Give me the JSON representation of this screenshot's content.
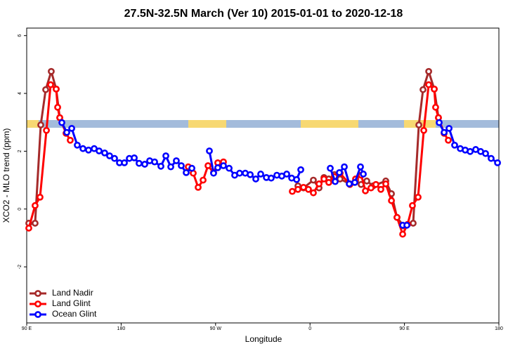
{
  "chart_data": {
    "type": "line",
    "title": "27.5N-32.5N March (Ver 10)   2015-01-01 to 2020-12-18",
    "x_label": "Longitude",
    "y_label": "XCO2 - MLO trend (ppm)",
    "xlim": [
      90,
      540
    ],
    "ylim": [
      -3.94,
      6.26
    ],
    "xticks": [
      {
        "value": 90,
        "label": "90 E"
      },
      {
        "value": 180,
        "label": "180"
      },
      {
        "value": 270,
        "label": "90 W"
      },
      {
        "value": 360,
        "label": "0"
      },
      {
        "value": 450,
        "label": "90 E"
      },
      {
        "value": 540,
        "label": "180"
      }
    ],
    "yticks": [
      -2,
      0,
      2,
      4,
      6
    ],
    "legend": "bottomleft",
    "series": [
      {
        "name": "Land Nadir",
        "color": "#a52a2a",
        "x": [
          92,
          98,
          103.4,
          108.1,
          113.4,
          118.1,
          121.5,
          null,
          348.5,
          353.8,
          363.2,
          368.6,
          373.3,
          377.9,
          383.3,
          388.6,
          398.0,
          403.4,
          408.7,
          414.1,
          420.1,
          432.2,
          437.6,
          442.9,
          449,
          458.3,
          463.7,
          467.7,
          473.1,
          478.4,
          482.4
        ],
        "values": [
          -0.49,
          -0.49,
          2.91,
          4.13,
          4.76,
          4.15,
          3.16,
          null,
          0.8,
          0.73,
          1.0,
          0.73,
          1.09,
          1.04,
          1.19,
          1.04,
          0.87,
          0.97,
          0.85,
          0.97,
          0.8,
          0.97,
          0.53,
          -0.29,
          -0.58,
          -0.49,
          2.91,
          4.13,
          4.76,
          4.15,
          3.16
        ]
      },
      {
        "name": "Land Glint",
        "color": "#ff0000",
        "x": [
          92,
          98,
          102.7,
          108.8,
          112.8,
          118.1,
          119.5,
          121.5,
          127.5,
          131.5,
          null,
          244,
          248.7,
          253.4,
          258.1,
          262.8,
          268.1,
          272.1,
          277.5,
          null,
          343.1,
          348.5,
          353.8,
          358.5,
          363.2,
          368.6,
          373.3,
          377.9,
          383.3,
          388.7,
          398,
          403.4,
          408.8,
          412.8,
          418.1,
          422.8,
          427.5,
          432.2,
          437.6,
          442.9,
          448.3,
          453,
          457.6,
          463,
          468.4,
          473.1,
          478.4,
          479.7,
          482.4,
          487.8,
          491.8
        ],
        "values": [
          -0.66,
          0.12,
          0.41,
          2.72,
          4.3,
          4.15,
          3.52,
          3.16,
          2.62,
          2.38,
          null,
          1.46,
          1.24,
          0.75,
          1.0,
          1.5,
          1.26,
          1.6,
          1.63,
          null,
          0.61,
          0.68,
          0.75,
          0.68,
          0.56,
          0.87,
          1.04,
          0.92,
          1.12,
          1.24,
          0.85,
          1.04,
          1.17,
          0.63,
          0.73,
          0.85,
          0.68,
          0.87,
          0.29,
          -0.29,
          -0.87,
          -0.53,
          0.12,
          0.41,
          2.72,
          4.3,
          4.15,
          3.52,
          3.16,
          2.62,
          2.38
        ]
      },
      {
        "name": "Ocean Glint",
        "color": "#0000ff",
        "x": [
          123.5,
          128.2,
          132.9,
          138.2,
          143.6,
          148.9,
          154.3,
          159,
          164.3,
          169,
          173.7,
          178.4,
          183.1,
          187.8,
          192.5,
          197.1,
          202.5,
          207.2,
          211.9,
          217.9,
          222.6,
          227.3,
          232.6,
          237.3,
          242,
          247.4,
          null,
          264.1,
          268.1,
          272.1,
          277.5,
          282.9,
          288.2,
          292.9,
          298.3,
          303,
          308.3,
          313,
          318.4,
          323,
          328.4,
          333.1,
          337.8,
          342.5,
          347.2,
          351.2,
          null,
          379.3,
          384,
          388,
          392.7,
          397.4,
          402.7,
          408.1,
          410.8,
          null,
          448.3,
          452.3,
          null,
          483.1,
          487.8,
          492.5,
          497.8,
          503.2,
          507.9,
          512.6,
          517.9,
          522.6,
          527.3,
          532.6,
          538.7
        ],
        "values": [
          2.99,
          2.65,
          2.79,
          2.21,
          2.09,
          2.04,
          2.09,
          2.01,
          1.94,
          1.84,
          1.75,
          1.6,
          1.6,
          1.75,
          1.77,
          1.58,
          1.55,
          1.67,
          1.63,
          1.48,
          1.84,
          1.46,
          1.67,
          1.5,
          1.26,
          1.41,
          null,
          2.01,
          1.24,
          1.43,
          1.5,
          1.41,
          1.17,
          1.24,
          1.24,
          1.19,
          1.04,
          1.21,
          1.09,
          1.07,
          1.17,
          1.14,
          1.21,
          1.07,
          1.02,
          1.36,
          null,
          1.41,
          0.95,
          1.26,
          1.46,
          0.87,
          0.92,
          1.46,
          1.21,
          null,
          -0.56,
          -0.56,
          null,
          2.99,
          2.65,
          2.79,
          2.21,
          2.09,
          2.04,
          1.99,
          2.06,
          1.99,
          1.92,
          1.75,
          1.6
        ]
      }
    ]
  }
}
